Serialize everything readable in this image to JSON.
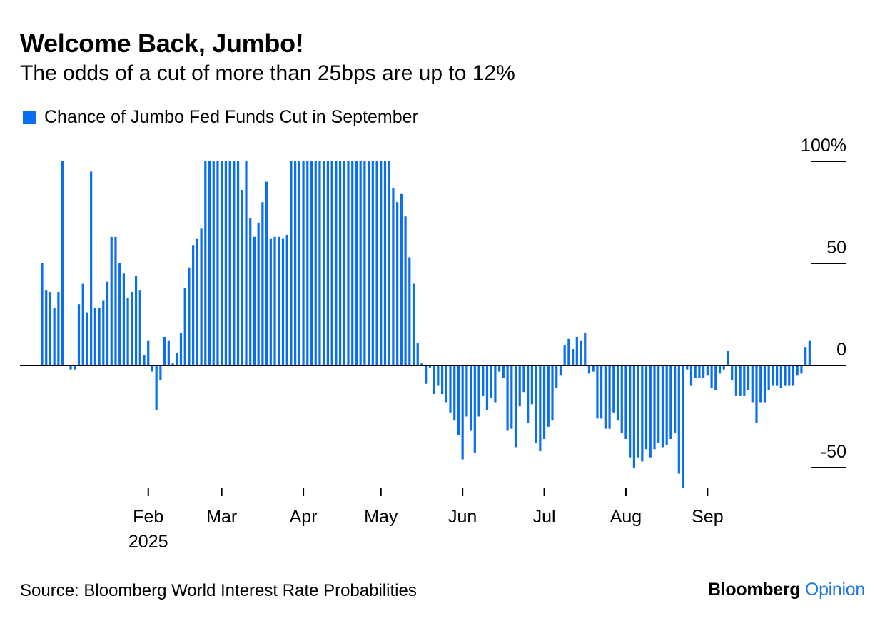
{
  "header": {
    "title": "Welcome Back, Jumbo!",
    "subtitle": "The odds of a cut of more than 25bps are up to 12%"
  },
  "legend": {
    "label": "Chance of Jumbo Fed Funds Cut in September"
  },
  "footer": {
    "source": "Source: Bloomberg World Interest Rate Probabilities",
    "brand_name": "Bloomberg",
    "brand_section": "Opinion"
  },
  "colors": {
    "bar": "#0a6ef0",
    "brand_accent": "#1f78e6",
    "axis": "#000000"
  },
  "chart_data": {
    "type": "bar",
    "title": "Welcome Back, Jumbo!",
    "subtitle": "The odds of a cut of more than 25bps are up to 12%",
    "series": [
      {
        "name": "Chance of Jumbo Fed Funds Cut in September",
        "values": [
          50,
          37,
          36,
          28,
          36,
          100,
          0,
          -2,
          -2,
          30,
          40,
          26,
          95,
          28,
          28,
          32,
          41,
          63,
          63,
          50,
          45,
          33,
          36,
          44,
          37,
          5,
          12,
          -3,
          -22,
          -7,
          14,
          12,
          1,
          6,
          16,
          38,
          48,
          59,
          62,
          67,
          100,
          100,
          100,
          100,
          100,
          100,
          100,
          100,
          100,
          86,
          100,
          72,
          63,
          70,
          80,
          90,
          62,
          63,
          63,
          62,
          64,
          100,
          100,
          100,
          100,
          100,
          100,
          100,
          100,
          100,
          100,
          100,
          100,
          100,
          100,
          100,
          100,
          100,
          100,
          100,
          100,
          100,
          100,
          100,
          100,
          100,
          87,
          80,
          84,
          73,
          53,
          40,
          11,
          1,
          -9,
          -1,
          -14,
          -10,
          -14,
          -18,
          -23,
          -27,
          -34,
          -46,
          -25,
          -32,
          -43,
          -25,
          -15,
          -22,
          -16,
          -18,
          -3,
          -6,
          -32,
          -31,
          -40,
          -20,
          -13,
          -28,
          -19,
          -38,
          -42,
          -36,
          -30,
          -27,
          -11,
          -5,
          10,
          13,
          8,
          14,
          12,
          16,
          -4,
          -3,
          -26,
          -26,
          -31,
          -31,
          -23,
          -27,
          -33,
          -36,
          -45,
          -50,
          -45,
          -47,
          -41,
          -45,
          -41,
          -38,
          -40,
          -39,
          -36,
          -33,
          -53,
          -60,
          -2,
          -10,
          -6,
          -6,
          -6,
          -5,
          -11,
          -12,
          -4,
          -2,
          7,
          -7,
          -15,
          -15,
          -15,
          -12,
          -18,
          -28,
          -18,
          -18,
          -12,
          -10,
          -10,
          -11,
          -10,
          -10,
          -10,
          -5,
          -4,
          9,
          12
        ]
      }
    ],
    "x_ticks": [
      {
        "label": "Feb",
        "sublabel": "2025",
        "index": 26
      },
      {
        "label": "Mar",
        "index": 44
      },
      {
        "label": "Apr",
        "index": 64
      },
      {
        "label": "May",
        "index": 83
      },
      {
        "label": "Jun",
        "index": 103
      },
      {
        "label": "Jul",
        "index": 123
      },
      {
        "label": "Aug",
        "index": 143
      },
      {
        "label": "Sep",
        "index": 163
      }
    ],
    "y_ticks": [
      {
        "value": 100,
        "label": "100%"
      },
      {
        "value": 50,
        "label": "50"
      },
      {
        "value": 0,
        "label": "0"
      },
      {
        "value": -50,
        "label": "-50"
      }
    ],
    "ylim": [
      -60,
      100
    ],
    "xlabel": "",
    "ylabel": "",
    "grid": false,
    "legend_position": "top-left"
  }
}
